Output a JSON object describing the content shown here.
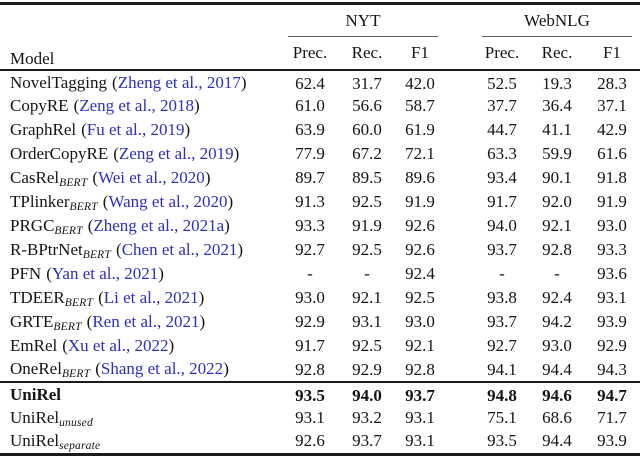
{
  "table": {
    "colors": {
      "citation_link": "#2d2fbd",
      "text": "#141414",
      "rule": "#1b1b1b"
    },
    "punct": {
      "open": "(",
      "close": ")"
    },
    "header": {
      "model": "Model",
      "groups": [
        {
          "label": "NYT"
        },
        {
          "label": "WebNLG"
        }
      ],
      "sub": [
        "Prec.",
        "Rec.",
        "F1"
      ]
    },
    "rows": [
      {
        "model": "NovelTagging",
        "sub": "",
        "cite": "Zheng et al., 2017",
        "nyt": [
          "62.4",
          "31.7",
          "42.0"
        ],
        "web": [
          "52.5",
          "19.3",
          "28.3"
        ]
      },
      {
        "model": "CopyRE",
        "sub": "",
        "cite": "Zeng et al., 2018",
        "nyt": [
          "61.0",
          "56.6",
          "58.7"
        ],
        "web": [
          "37.7",
          "36.4",
          "37.1"
        ]
      },
      {
        "model": "GraphRel",
        "sub": "",
        "cite": "Fu et al., 2019",
        "nyt": [
          "63.9",
          "60.0",
          "61.9"
        ],
        "web": [
          "44.7",
          "41.1",
          "42.9"
        ]
      },
      {
        "model": "OrderCopyRE",
        "sub": "",
        "cite": "Zeng et al., 2019",
        "nyt": [
          "77.9",
          "67.2",
          "72.1"
        ],
        "web": [
          "63.3",
          "59.9",
          "61.6"
        ]
      },
      {
        "model": "CasRel",
        "sub": "BERT",
        "cite": "Wei et al., 2020",
        "nyt": [
          "89.7",
          "89.5",
          "89.6"
        ],
        "web": [
          "93.4",
          "90.1",
          "91.8"
        ]
      },
      {
        "model": "TPlinker",
        "sub": "BERT",
        "cite": "Wang et al., 2020",
        "nyt": [
          "91.3",
          "92.5",
          "91.9"
        ],
        "web": [
          "91.7",
          "92.0",
          "91.9"
        ]
      },
      {
        "model": "PRGC",
        "sub": "BERT",
        "cite": "Zheng et al., 2021a",
        "nyt": [
          "93.3",
          "91.9",
          "92.6"
        ],
        "web": [
          "94.0",
          "92.1",
          "93.0"
        ]
      },
      {
        "model": "R-BPtrNet",
        "sub": "BERT",
        "cite": "Chen et al., 2021",
        "nyt": [
          "92.7",
          "92.5",
          "92.6"
        ],
        "web": [
          "93.7",
          "92.8",
          "93.3"
        ]
      },
      {
        "model": "PFN",
        "sub": "",
        "cite": "Yan et al., 2021",
        "nyt": [
          "-",
          "-",
          "92.4"
        ],
        "web": [
          "-",
          "-",
          "93.6"
        ]
      },
      {
        "model": "TDEER",
        "sub": "BERT",
        "cite": "Li et al., 2021",
        "nyt": [
          "93.0",
          "92.1",
          "92.5"
        ],
        "web": [
          "93.8",
          "92.4",
          "93.1"
        ]
      },
      {
        "model": "GRTE",
        "sub": "BERT",
        "cite": "Ren et al., 2021",
        "nyt": [
          "92.9",
          "93.1",
          "93.0"
        ],
        "web": [
          "93.7",
          "94.2",
          "93.9"
        ]
      },
      {
        "model": "EmRel",
        "sub": "",
        "cite": "Xu et al., 2022",
        "nyt": [
          "91.7",
          "92.5",
          "92.1"
        ],
        "web": [
          "92.7",
          "93.0",
          "92.9"
        ]
      },
      {
        "model": "OneRel",
        "sub": "BERT",
        "cite": "Shang et al., 2022",
        "nyt": [
          "92.8",
          "92.9",
          "92.8"
        ],
        "web": [
          "94.1",
          "94.4",
          "94.3"
        ]
      }
    ],
    "footer_rows": [
      {
        "model": "UniRel",
        "sub": "",
        "bold": true,
        "nyt": [
          "93.5",
          "94.0",
          "93.7"
        ],
        "web": [
          "94.8",
          "94.6",
          "94.7"
        ]
      },
      {
        "model": "UniRel",
        "sub": "unused",
        "bold": false,
        "nyt": [
          "93.1",
          "93.2",
          "93.1"
        ],
        "web": [
          "75.1",
          "68.6",
          "71.7"
        ]
      },
      {
        "model": "UniRel",
        "sub": "separate",
        "bold": false,
        "nyt": [
          "92.6",
          "93.7",
          "93.1"
        ],
        "web": [
          "93.5",
          "94.4",
          "93.9"
        ]
      }
    ]
  }
}
